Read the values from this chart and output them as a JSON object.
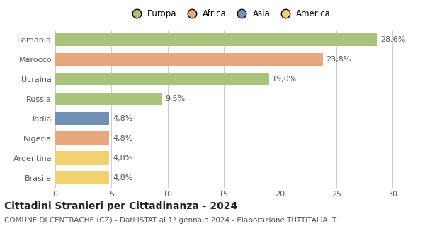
{
  "categories": [
    "Romania",
    "Marocco",
    "Ucraina",
    "Russia",
    "India",
    "Nigeria",
    "Argentina",
    "Brasile"
  ],
  "values": [
    28.6,
    23.8,
    19.0,
    9.5,
    4.8,
    4.8,
    4.8,
    4.8
  ],
  "labels": [
    "28,6%",
    "23,8%",
    "19,0%",
    "9,5%",
    "4,8%",
    "4,8%",
    "4,8%",
    "4,8%"
  ],
  "colors": [
    "#a8c47a",
    "#e8a87c",
    "#a8c47a",
    "#a8c47a",
    "#7090b8",
    "#e8a87c",
    "#f0d070",
    "#f0d070"
  ],
  "legend_labels": [
    "Europa",
    "Africa",
    "Asia",
    "America"
  ],
  "legend_colors": [
    "#a8c47a",
    "#e8a87c",
    "#7090b8",
    "#f0d070"
  ],
  "xlim": [
    0,
    31
  ],
  "xticks": [
    0,
    5,
    10,
    15,
    20,
    25,
    30
  ],
  "title": "Cittadini Stranieri per Cittadinanza - 2024",
  "subtitle": "COMUNE DI CENTRACHE (CZ) - Dati ISTAT al 1° gennaio 2024 - Elaborazione TUTTITALIA.IT",
  "title_fontsize": 10,
  "subtitle_fontsize": 7.5,
  "label_fontsize": 8,
  "tick_fontsize": 8,
  "legend_fontsize": 8.5,
  "bar_height": 0.65,
  "background_color": "#ffffff"
}
